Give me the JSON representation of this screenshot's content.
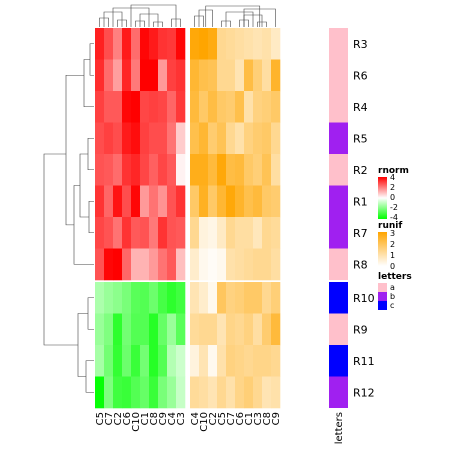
{
  "chart_data": {
    "type": "heatmap",
    "rows": [
      "R3",
      "R6",
      "R4",
      "R5",
      "R2",
      "R1",
      "R7",
      "R8",
      "R10",
      "R9",
      "R11",
      "R12"
    ],
    "panels": [
      {
        "name": "rnorm",
        "columns": [
          "C5",
          "C7",
          "C2",
          "C6",
          "C10",
          "C1",
          "C8",
          "C9",
          "C4",
          "C3"
        ],
        "values": [
          [
            3.5,
            2.8,
            2.0,
            3.6,
            2.3,
            3.9,
            3.6,
            3.2,
            3.1,
            3.9
          ],
          [
            3.3,
            2.3,
            1.5,
            3.4,
            2.1,
            4.3,
            4.5,
            1.6,
            3.0,
            3.2
          ],
          [
            3.0,
            2.6,
            2.6,
            3.9,
            4.1,
            2.9,
            3.0,
            2.9,
            2.4,
            3.1
          ],
          [
            2.8,
            3.0,
            2.8,
            3.6,
            3.8,
            3.0,
            2.8,
            2.8,
            2.2,
            0.8
          ],
          [
            2.7,
            2.6,
            2.3,
            3.2,
            3.4,
            2.9,
            2.5,
            2.9,
            2.6,
            0.2
          ],
          [
            3.2,
            2.4,
            3.7,
            2.8,
            3.9,
            1.6,
            2.2,
            1.7,
            2.7,
            3.2
          ],
          [
            2.9,
            2.7,
            2.2,
            3.2,
            2.6,
            2.7,
            2.1,
            3.2,
            2.7,
            2.6
          ],
          [
            2.7,
            3.9,
            4.0,
            2.4,
            1.2,
            1.2,
            1.6,
            2.2,
            2.6,
            1.0
          ],
          [
            -1.3,
            -1.6,
            -1.8,
            -2.1,
            -2.6,
            -2.7,
            -2.3,
            -2.9,
            -3.3,
            -3.0
          ],
          [
            -1.6,
            -2.0,
            -3.3,
            -2.2,
            -2.7,
            -2.7,
            -3.4,
            -2.4,
            -1.6,
            -2.6
          ],
          [
            -1.4,
            -2.2,
            -3.2,
            -2.3,
            -3.1,
            -2.2,
            -3.4,
            -2.7,
            -1.2,
            -0.8
          ],
          [
            -3.9,
            -2.0,
            -3.0,
            -3.1,
            -2.7,
            -2.4,
            -3.1,
            -2.1,
            -1.6,
            -0.9
          ]
        ]
      },
      {
        "name": "runif",
        "columns": [
          "C4",
          "C10",
          "C2",
          "C5",
          "C7",
          "C6",
          "C1",
          "C3",
          "C8",
          "C9"
        ],
        "values": [
          [
            2.9,
            3.0,
            2.8,
            1.3,
            1.2,
            1.1,
            1.0,
            0.9,
            1.0,
            0.7
          ],
          [
            2.4,
            2.1,
            2.0,
            1.3,
            1.3,
            0.9,
            2.2,
            1.6,
            1.1,
            2.5
          ],
          [
            2.3,
            1.8,
            2.2,
            1.8,
            1.7,
            2.1,
            1.0,
            1.5,
            1.6,
            1.8
          ],
          [
            2.1,
            2.4,
            1.7,
            2.0,
            1.3,
            1.0,
            1.5,
            1.7,
            1.8,
            1.3
          ],
          [
            2.7,
            2.7,
            2.3,
            2.9,
            2.2,
            2.3,
            1.8,
            1.6,
            2.0,
            1.1
          ],
          [
            1.8,
            2.6,
            1.8,
            2.4,
            2.9,
            2.5,
            2.1,
            2.3,
            1.8,
            1.7
          ],
          [
            1.3,
            0.4,
            0.3,
            0.7,
            1.3,
            1.1,
            1.1,
            0.8,
            1.3,
            1.2
          ],
          [
            0.6,
            0.2,
            0.1,
            0.2,
            1.0,
            1.1,
            1.2,
            1.3,
            1.3,
            1.1
          ],
          [
            0.9,
            0.6,
            0.2,
            1.9,
            1.5,
            1.6,
            1.8,
            1.8,
            1.3,
            1.6
          ],
          [
            1.2,
            1.3,
            1.3,
            0.9,
            1.4,
            1.3,
            1.5,
            1.1,
            1.7,
            2.3
          ],
          [
            0.4,
            0.9,
            0.2,
            1.0,
            1.5,
            1.4,
            1.3,
            1.4,
            1.4,
            1.3
          ],
          [
            1.2,
            1.1,
            0.9,
            1.3,
            1.0,
            1.4,
            1.6,
            1.3,
            0.9,
            1.0
          ]
        ]
      }
    ],
    "annotation": {
      "name": "letters",
      "values": [
        "a",
        "a",
        "a",
        "b",
        "a",
        "b",
        "b",
        "a",
        "c",
        "a",
        "c",
        "b"
      ]
    },
    "legends": [
      {
        "title": "rnorm",
        "ticks": [
          "4",
          "2",
          "0",
          "-2",
          "-4"
        ],
        "colors": [
          "#ff0000",
          "#ffffff",
          "#00ff00"
        ]
      },
      {
        "title": "runif",
        "ticks": [
          "3",
          "2",
          "1",
          "0"
        ],
        "colors": [
          "#ffa500",
          "#ffffff"
        ]
      },
      {
        "title": "letters",
        "entries": [
          {
            "label": "a",
            "color": "#ffc0cb"
          },
          {
            "label": "b",
            "color": "#a020f0"
          },
          {
            "label": "c",
            "color": "#0000ff"
          }
        ]
      }
    ],
    "grid": false
  }
}
